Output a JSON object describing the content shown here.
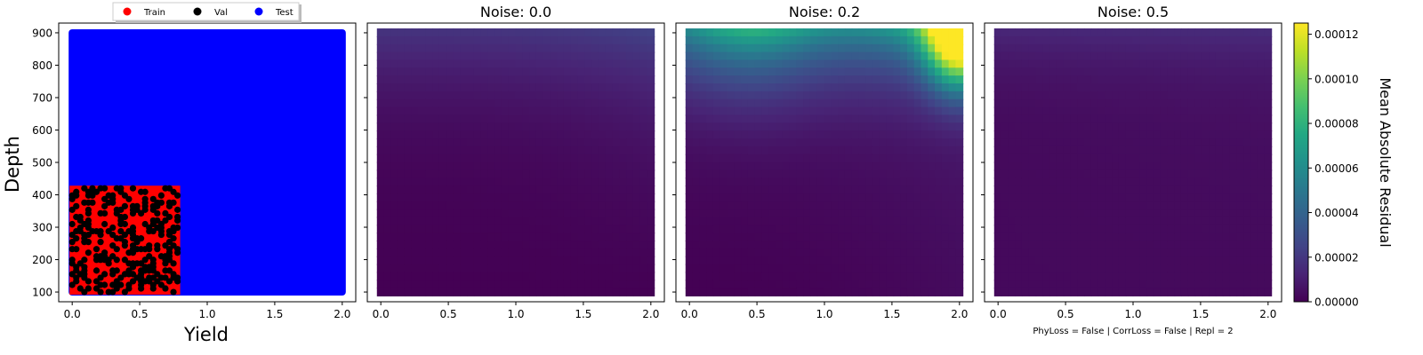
{
  "chart_data": [
    {
      "type": "scatter",
      "title": "",
      "xlabel": "Yield",
      "ylabel": "Depth",
      "xlim": [
        -0.1,
        2.1
      ],
      "ylim": [
        70,
        930
      ],
      "xticks": [
        "0.0",
        "0.5",
        "1.0",
        "1.5",
        "2.0"
      ],
      "yticks": [
        "100",
        "200",
        "300",
        "400",
        "500",
        "600",
        "700",
        "800",
        "900"
      ],
      "legend": {
        "placement": "top-center",
        "entries": [
          "Train",
          "Val",
          "Test"
        ]
      },
      "series": [
        {
          "name": "Train",
          "color": "#ff0000",
          "x_range": [
            0.0,
            0.78
          ],
          "y_range": [
            100,
            420
          ]
        },
        {
          "name": "Val",
          "color": "#000000",
          "x_range": [
            0.0,
            0.78
          ],
          "y_range": [
            100,
            420
          ]
        },
        {
          "name": "Test",
          "color": "#0000ff",
          "x_range": [
            0.0,
            2.0
          ],
          "y_range": [
            100,
            900
          ]
        }
      ]
    },
    {
      "type": "heatmap",
      "title": "Noise: 0.0",
      "xticks": [
        "0.0",
        "0.5",
        "1.0",
        "1.5",
        "2.0"
      ],
      "x_range": [
        0.0,
        2.0
      ],
      "y_range": [
        100,
        900
      ],
      "max_value": 4e-05
    },
    {
      "type": "heatmap",
      "title": "Noise: 0.2",
      "xticks": [
        "0.0",
        "0.5",
        "1.0",
        "1.5",
        "2.0"
      ],
      "x_range": [
        0.0,
        2.0
      ],
      "y_range": [
        100,
        900
      ],
      "max_value": 0.00012
    },
    {
      "type": "heatmap",
      "title": "Noise: 0.5",
      "xticks": [
        "0.0",
        "0.5",
        "1.0",
        "1.5",
        "2.0"
      ],
      "x_range": [
        0.0,
        2.0
      ],
      "y_range": [
        100,
        900
      ],
      "max_value": 2e-05,
      "footer": "PhyLoss = False | CorrLoss = False | Repl = 2"
    }
  ],
  "colorbar": {
    "label": "Mean Absolute Residual",
    "range": [
      0,
      0.000125
    ],
    "ticks": [
      "0.00000",
      "0.00002",
      "0.00004",
      "0.00006",
      "0.00008",
      "0.00010",
      "0.00012"
    ],
    "colormap": "viridis"
  }
}
